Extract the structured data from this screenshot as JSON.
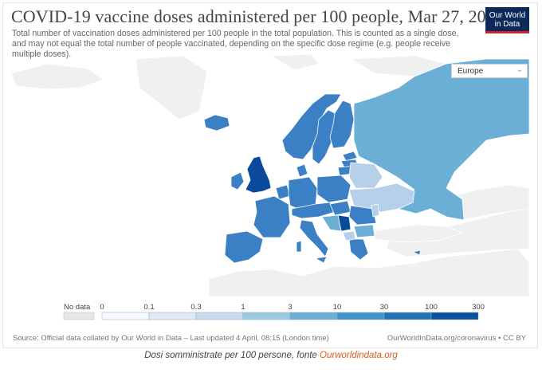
{
  "title": "COVID-19 vaccine doses administered per 100 people, Mar 27, 2021",
  "subtitle": "Total number of vaccination doses administered per 100 people in the total population. This is counted as a single dose, and may not equal the total number of people vaccinated, depending on the specific dose regime (e.g. people receive multiple doses).",
  "logo": {
    "line1": "Our World",
    "line2": "in Data"
  },
  "region_select": {
    "value": "Europe"
  },
  "legend": {
    "no_data_label": "No data",
    "ticks": [
      "0",
      "0.1",
      "0.3",
      "1",
      "3",
      "10",
      "30",
      "100",
      "300"
    ],
    "colors": [
      "#f7fbff",
      "#deebf7",
      "#c6dbef",
      "#9ecae1",
      "#6baed6",
      "#4292c6",
      "#2171b5",
      "#08519c"
    ]
  },
  "colors": {
    "land_no_data": "#f0f0f0",
    "band_3_10": "#6baed6",
    "band_10_30": "#3b7fc4",
    "band_30_100": "#0b4a9a",
    "band_1_3": "#b7d0ea"
  },
  "source": "Source: Official data collated by Our World in Data – Last updated 4 April, 08:15 (London time)",
  "source_link": "OurWorldInData.org/coronavirus • CC BY",
  "caption": {
    "text": "Dosi somministrate per 100 persone, fonte ",
    "link": "Ourworldindata.org"
  }
}
